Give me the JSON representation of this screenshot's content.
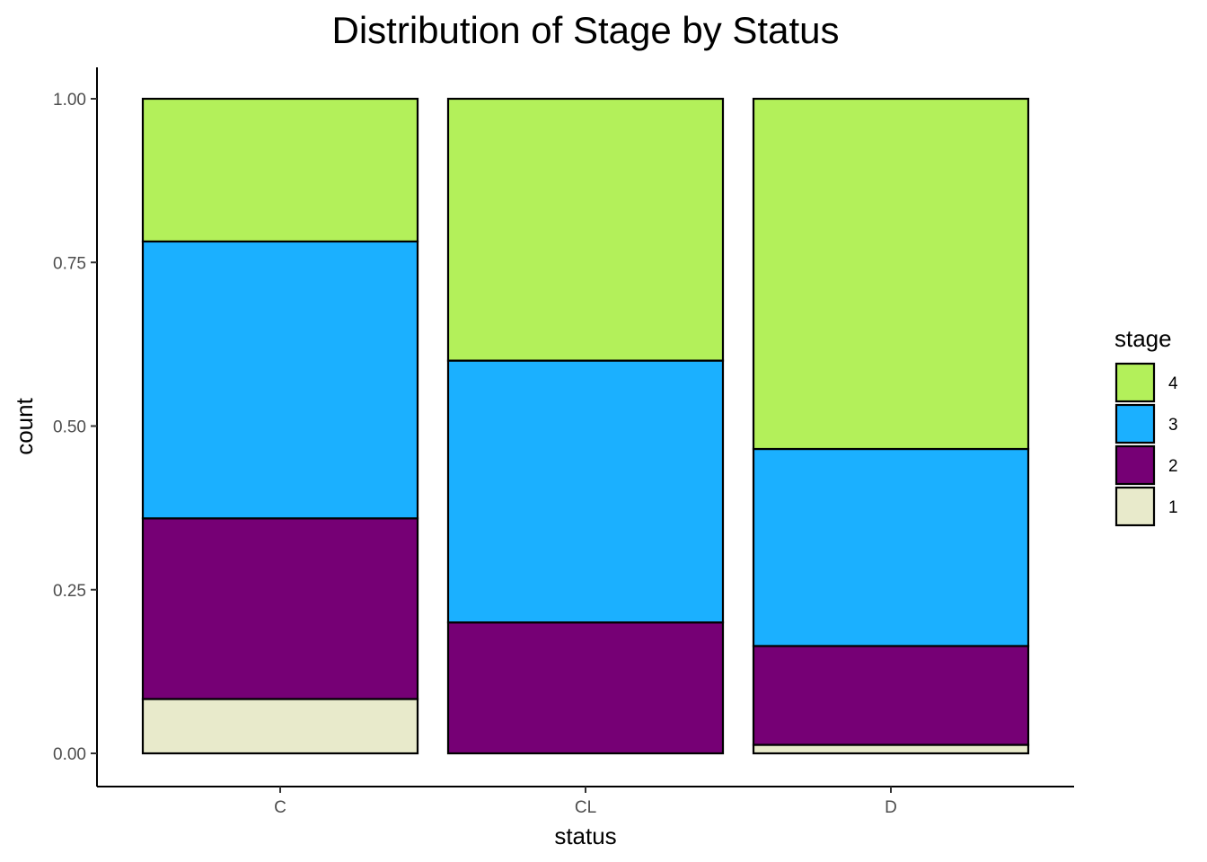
{
  "chart_data": {
    "type": "bar",
    "stacked": "fill",
    "title": "Distribution of Stage by Status",
    "xlabel": "status",
    "ylabel": "count",
    "categories": [
      "C",
      "CL",
      "D"
    ],
    "ylim": [
      0,
      1
    ],
    "yticks": [
      "0.00",
      "0.25",
      "0.50",
      "0.75",
      "1.00"
    ],
    "yticks_values": [
      0,
      0.25,
      0.5,
      0.75,
      1.0
    ],
    "series": [
      {
        "name": "1",
        "color": "#E8EACB",
        "values": [
          0.083,
          0.0,
          0.013
        ]
      },
      {
        "name": "2",
        "color": "#760075",
        "values": [
          0.276,
          0.2,
          0.151
        ]
      },
      {
        "name": "3",
        "color": "#1BB0FF",
        "values": [
          0.423,
          0.4,
          0.301
        ]
      },
      {
        "name": "4",
        "color": "#B3F05A",
        "values": [
          0.218,
          0.4,
          0.535
        ]
      }
    ],
    "legend": {
      "title": "stage",
      "position": "right",
      "order": [
        "4",
        "3",
        "2",
        "1"
      ]
    },
    "grid": false
  }
}
